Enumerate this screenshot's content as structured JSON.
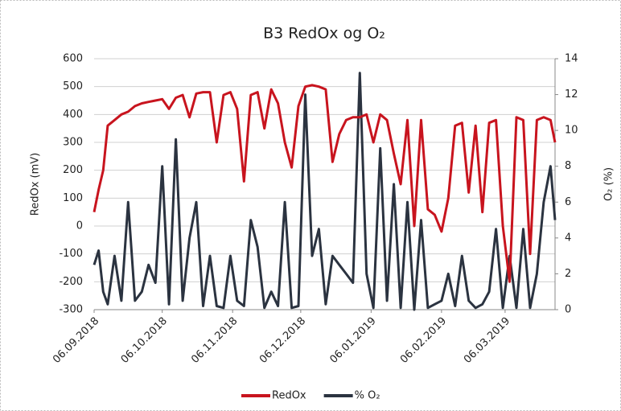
{
  "chart_data": {
    "type": "line",
    "title": "B3 RedOx og O₂",
    "y_label": "RedOx (mV)",
    "y2_label": "O₂ (%)",
    "x": [
      "2018-09-06",
      "2018-09-08",
      "2018-09-10",
      "2018-09-12",
      "2018-09-15",
      "2018-09-18",
      "2018-09-21",
      "2018-09-24",
      "2018-09-27",
      "2018-09-30",
      "2018-10-03",
      "2018-10-06",
      "2018-10-09",
      "2018-10-12",
      "2018-10-15",
      "2018-10-18",
      "2018-10-21",
      "2018-10-24",
      "2018-10-27",
      "2018-10-30",
      "2018-11-02",
      "2018-11-05",
      "2018-11-08",
      "2018-11-11",
      "2018-11-14",
      "2018-11-17",
      "2018-11-20",
      "2018-11-23",
      "2018-11-26",
      "2018-11-29",
      "2018-12-02",
      "2018-12-05",
      "2018-12-08",
      "2018-12-11",
      "2018-12-14",
      "2018-12-17",
      "2018-12-20",
      "2018-12-23",
      "2018-12-26",
      "2018-12-29",
      "2019-01-01",
      "2019-01-04",
      "2019-01-07",
      "2019-01-10",
      "2019-01-13",
      "2019-01-16",
      "2019-01-19",
      "2019-01-22",
      "2019-01-25",
      "2019-01-28",
      "2019-01-31",
      "2019-02-03",
      "2019-02-06",
      "2019-02-09",
      "2019-02-12",
      "2019-02-15",
      "2019-02-18",
      "2019-02-21",
      "2019-02-24",
      "2019-02-27",
      "2019-03-02",
      "2019-03-05",
      "2019-03-08",
      "2019-03-11",
      "2019-03-14",
      "2019-03-17",
      "2019-03-20",
      "2019-03-23",
      "2019-03-26",
      "2019-03-28"
    ],
    "series": [
      {
        "name": "RedOx",
        "color": "#c8141e",
        "axis": "y",
        "values": [
          50,
          130,
          200,
          360,
          380,
          400,
          410,
          430,
          440,
          445,
          450,
          455,
          420,
          460,
          470,
          390,
          475,
          480,
          480,
          300,
          470,
          480,
          420,
          160,
          470,
          480,
          350,
          490,
          440,
          300,
          210,
          430,
          500,
          505,
          500,
          490,
          230,
          330,
          380,
          390,
          390,
          400,
          300,
          400,
          380,
          260,
          150,
          380,
          0,
          380,
          60,
          40,
          -20,
          100,
          360,
          370,
          120,
          360,
          50,
          370,
          380,
          0,
          -200,
          390,
          380,
          -100,
          380,
          390,
          380,
          300
        ]
      },
      {
        "name": "% O₂",
        "color": "#2b3340",
        "axis": "y2",
        "values": [
          2.5,
          3.3,
          1,
          0.3,
          3,
          0.5,
          6,
          0.5,
          1,
          2.5,
          1.5,
          8,
          0.3,
          9.5,
          0.5,
          4,
          6,
          0.2,
          3,
          0.2,
          0.1,
          3,
          0.5,
          0.2,
          5,
          3.5,
          0.1,
          1,
          0.2,
          6,
          0.1,
          0.2,
          12,
          3,
          4.5,
          0.3,
          3,
          2.5,
          2,
          1.5,
          13.2,
          2,
          0.1,
          9,
          0.5,
          7,
          0.1,
          6,
          0,
          5,
          0.1,
          0.3,
          0.5,
          2,
          0.2,
          3,
          0.5,
          0.1,
          0.3,
          1,
          4.5,
          0.1,
          3,
          0.1,
          4.5,
          0.1,
          2,
          6,
          8,
          5
        ]
      }
    ],
    "xlim": [
      "2018-09-06",
      "2019-03-28"
    ],
    "xticks": [
      {
        "value": "2018-09-06",
        "label": "06.09.2018"
      },
      {
        "value": "2018-10-06",
        "label": "06.10.2018"
      },
      {
        "value": "2018-11-06",
        "label": "06.11.2018"
      },
      {
        "value": "2018-12-06",
        "label": "06.12.2018"
      },
      {
        "value": "2019-01-06",
        "label": "06.01.2019"
      },
      {
        "value": "2019-02-06",
        "label": "06.02.2019"
      },
      {
        "value": "2019-03-06",
        "label": "06.03.2019"
      }
    ],
    "ylim": [
      -300,
      600
    ],
    "yticks": [
      -300,
      -200,
      -100,
      0,
      100,
      200,
      300,
      400,
      500,
      600
    ],
    "y2lim": [
      0,
      14
    ],
    "y2ticks": [
      0,
      2,
      4,
      6,
      8,
      10,
      12,
      14
    ],
    "grid": true,
    "legend": "bottom"
  }
}
